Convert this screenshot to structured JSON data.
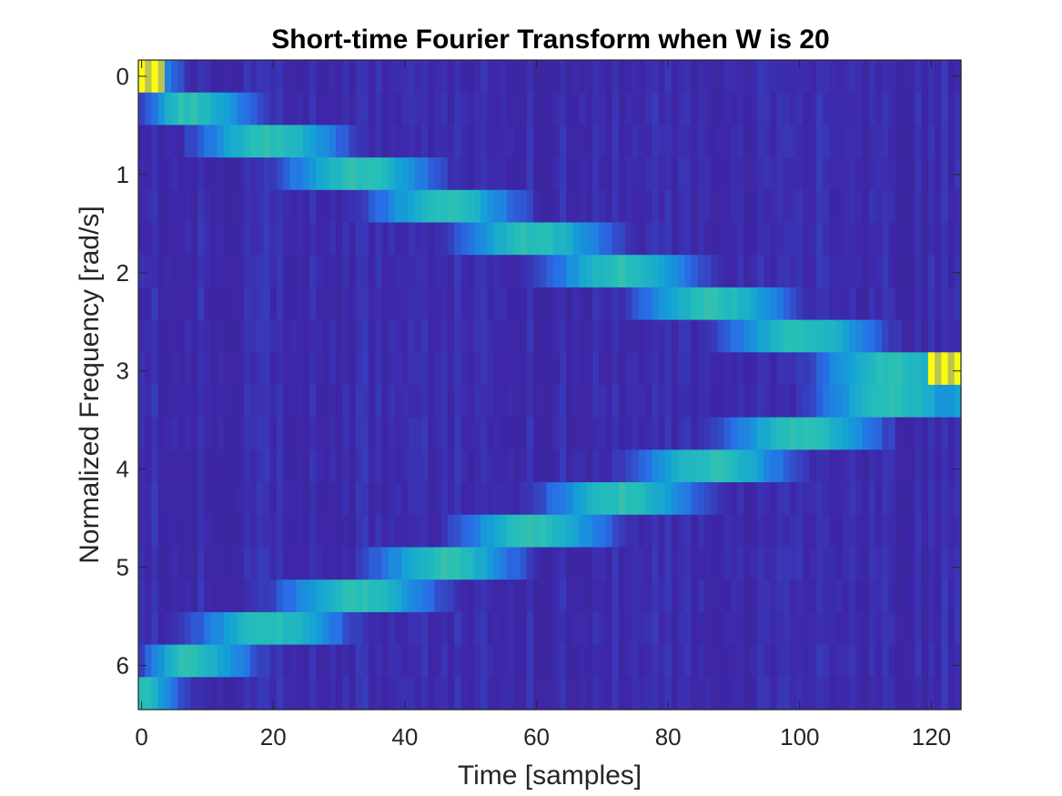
{
  "chart_data": {
    "type": "heatmap",
    "title": "Short-time Fourier Transform when W is 20",
    "xlabel": "Time [samples]",
    "ylabel": "Normalized Frequency [rad/s]",
    "xlim": [
      0,
      124
    ],
    "ylim": [
      0,
      6.2832
    ],
    "y_reversed": true,
    "x_ticks": [
      0,
      20,
      40,
      60,
      80,
      100,
      120
    ],
    "x_tick_labels": [
      "0",
      "20",
      "40",
      "60",
      "80",
      "100",
      "120"
    ],
    "y_ticks": [
      0,
      1,
      2,
      3,
      4,
      5,
      6
    ],
    "y_tick_labels": [
      "0",
      "1",
      "2",
      "3",
      "4",
      "5",
      "6"
    ],
    "colormap": "parula",
    "grid": false,
    "legend": "none",
    "n_time_bins": 125,
    "n_freq_bins": 20,
    "ridges": [
      {
        "name": "ascending chirp",
        "points": [
          [
            0,
            0.0
          ],
          [
            6,
            0.31
          ],
          [
            18,
            0.63
          ],
          [
            31,
            0.94
          ],
          [
            44,
            1.26
          ],
          [
            56,
            1.57
          ],
          [
            69,
            1.88
          ],
          [
            82,
            2.2
          ],
          [
            95,
            2.51
          ],
          [
            108,
            2.83
          ],
          [
            121,
            3.14
          ]
        ]
      },
      {
        "name": "aliased image",
        "points": [
          [
            0,
            6.28
          ],
          [
            6,
            5.97
          ],
          [
            18,
            5.65
          ],
          [
            31,
            5.34
          ],
          [
            44,
            5.03
          ],
          [
            56,
            4.71
          ],
          [
            69,
            4.4
          ],
          [
            82,
            4.08
          ],
          [
            95,
            3.77
          ],
          [
            108,
            3.46
          ],
          [
            121,
            3.14
          ]
        ]
      }
    ],
    "peak_regions": [
      {
        "x": [
          0,
          3
        ],
        "y": 0.0,
        "level": "max"
      },
      {
        "x": [
          120,
          124
        ],
        "y": 3.14,
        "level": "max"
      }
    ],
    "colors": {
      "background": "#3e26a8",
      "ridge": "#26bfb8",
      "peak": "#f9fb0e"
    }
  }
}
